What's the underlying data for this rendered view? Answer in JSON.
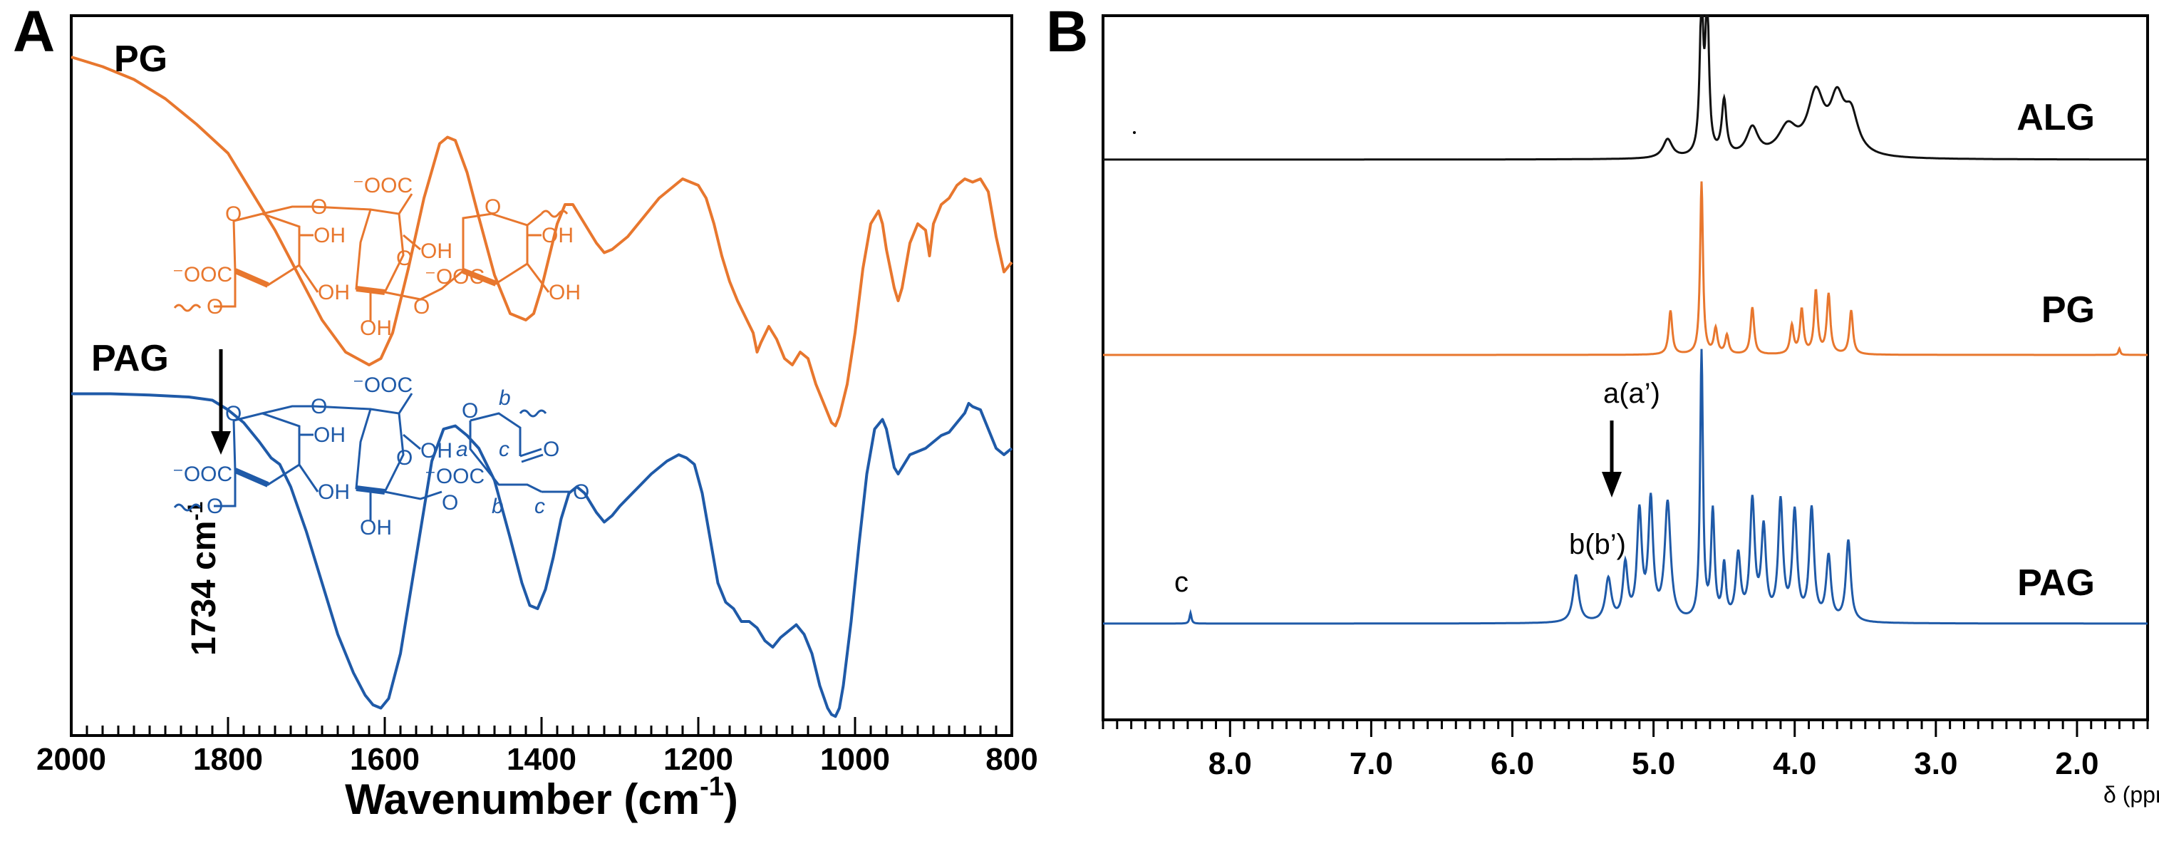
{
  "chart_data": [
    {
      "panel": "A",
      "type": "line",
      "title": "",
      "xlabel": "Wavenumber (cm",
      "xlabel_sup": "-1",
      "xlabel_close": ")",
      "xlim": [
        2000,
        800
      ],
      "x_ticks": [
        "2000",
        "1800",
        "1600",
        "1400",
        "1200",
        "1000",
        "800"
      ],
      "ylabel": "",
      "grid": false,
      "legend": "none",
      "series": [
        {
          "name": "PG",
          "color": "#E8772E",
          "x": [
            2000,
            1960,
            1920,
            1880,
            1840,
            1800,
            1770,
            1740,
            1710,
            1680,
            1650,
            1620,
            1605,
            1590,
            1570,
            1550,
            1530,
            1520,
            1510,
            1495,
            1480,
            1460,
            1440,
            1420,
            1410,
            1400,
            1390,
            1380,
            1370,
            1360,
            1350,
            1330,
            1320,
            1310,
            1290,
            1270,
            1250,
            1230,
            1220,
            1210,
            1200,
            1190,
            1180,
            1170,
            1160,
            1150,
            1140,
            1130,
            1125,
            1120,
            1110,
            1100,
            1090,
            1080,
            1070,
            1060,
            1050,
            1040,
            1030,
            1025,
            1020,
            1010,
            1000,
            990,
            980,
            970,
            965,
            960,
            950,
            945,
            940,
            930,
            920,
            910,
            905,
            900,
            890,
            880,
            870,
            860,
            850,
            840,
            830,
            820,
            810,
            800
          ],
          "y": [
            0.98,
            0.965,
            0.945,
            0.915,
            0.875,
            0.83,
            0.77,
            0.71,
            0.64,
            0.57,
            0.52,
            0.5,
            0.51,
            0.55,
            0.65,
            0.76,
            0.845,
            0.855,
            0.85,
            0.8,
            0.73,
            0.64,
            0.58,
            0.57,
            0.58,
            0.62,
            0.67,
            0.72,
            0.75,
            0.75,
            0.73,
            0.69,
            0.675,
            0.68,
            0.7,
            0.73,
            0.76,
            0.78,
            0.79,
            0.785,
            0.78,
            0.76,
            0.72,
            0.67,
            0.63,
            0.6,
            0.575,
            0.55,
            0.52,
            0.535,
            0.56,
            0.54,
            0.51,
            0.5,
            0.52,
            0.51,
            0.47,
            0.44,
            0.41,
            0.405,
            0.42,
            0.47,
            0.55,
            0.65,
            0.72,
            0.74,
            0.72,
            0.68,
            0.62,
            0.6,
            0.62,
            0.69,
            0.72,
            0.71,
            0.67,
            0.72,
            0.75,
            0.76,
            0.78,
            0.79,
            0.785,
            0.79,
            0.77,
            0.7,
            0.645,
            0.66
          ]
        },
        {
          "name": "PAG",
          "color": "#1F5AA8",
          "x": [
            2000,
            1950,
            1900,
            1850,
            1820,
            1800,
            1780,
            1760,
            1745,
            1734,
            1720,
            1700,
            1680,
            1660,
            1640,
            1625,
            1615,
            1605,
            1595,
            1580,
            1560,
            1540,
            1525,
            1510,
            1495,
            1480,
            1460,
            1440,
            1425,
            1415,
            1405,
            1395,
            1385,
            1375,
            1365,
            1355,
            1345,
            1330,
            1320,
            1310,
            1300,
            1280,
            1260,
            1240,
            1225,
            1215,
            1205,
            1195,
            1185,
            1175,
            1165,
            1155,
            1145,
            1135,
            1125,
            1115,
            1105,
            1095,
            1085,
            1075,
            1065,
            1055,
            1045,
            1035,
            1030,
            1025,
            1020,
            1015,
            1005,
            995,
            985,
            975,
            965,
            960,
            955,
            950,
            945,
            940,
            930,
            920,
            910,
            900,
            890,
            880,
            870,
            860,
            855,
            850,
            840,
            830,
            820,
            810,
            800
          ],
          "y": [
            0.455,
            0.455,
            0.453,
            0.45,
            0.445,
            0.43,
            0.41,
            0.38,
            0.355,
            0.345,
            0.31,
            0.24,
            0.16,
            0.08,
            0.02,
            -0.015,
            -0.03,
            -0.035,
            -0.02,
            0.05,
            0.2,
            0.35,
            0.4,
            0.405,
            0.39,
            0.37,
            0.32,
            0.23,
            0.16,
            0.125,
            0.12,
            0.15,
            0.2,
            0.26,
            0.3,
            0.31,
            0.3,
            0.27,
            0.255,
            0.265,
            0.28,
            0.305,
            0.33,
            0.35,
            0.36,
            0.355,
            0.345,
            0.3,
            0.23,
            0.16,
            0.13,
            0.12,
            0.1,
            0.1,
            0.09,
            0.07,
            0.06,
            0.075,
            0.085,
            0.095,
            0.08,
            0.05,
            0.0,
            -0.035,
            -0.045,
            -0.048,
            -0.035,
            0.0,
            0.1,
            0.22,
            0.33,
            0.4,
            0.415,
            0.4,
            0.37,
            0.34,
            0.33,
            0.34,
            0.36,
            0.365,
            0.37,
            0.38,
            0.39,
            0.395,
            0.41,
            0.425,
            0.44,
            0.435,
            0.43,
            0.4,
            0.37,
            0.36,
            0.37
          ]
        }
      ],
      "annotations": [
        {
          "text": "PG",
          "series": "PG"
        },
        {
          "text": "PAG",
          "series": "PAG"
        },
        {
          "text": "1734 cm",
          "sup": "-1",
          "x": 1734,
          "arrow": "down"
        }
      ]
    },
    {
      "panel": "B",
      "type": "line",
      "title": "",
      "xlabel": "δ (ppm)",
      "xlim": [
        8.9,
        1.5
      ],
      "x_ticks": [
        "8.0",
        "7.0",
        "6.0",
        "5.0",
        "4.0",
        "3.0",
        "2.0"
      ],
      "x_tick_values": [
        8.0,
        7.0,
        6.0,
        5.0,
        4.0,
        3.0,
        2.0
      ],
      "ylabel": "",
      "grid": false,
      "legend": "none",
      "series": [
        {
          "name": "ALG",
          "color": "#111111",
          "baseline_y": 0.0,
          "peaks": [
            {
              "ppm": 4.9,
              "h": 0.12,
              "w": 0.04
            },
            {
              "ppm": 4.66,
              "h": 0.95,
              "w": 0.015
            },
            {
              "ppm": 4.62,
              "h": 0.95,
              "w": 0.015
            },
            {
              "ppm": 4.5,
              "h": 0.35,
              "w": 0.02
            },
            {
              "ppm": 4.3,
              "h": 0.18,
              "w": 0.05
            },
            {
              "ppm": 4.05,
              "h": 0.18,
              "w": 0.08
            },
            {
              "ppm": 3.85,
              "h": 0.38,
              "w": 0.07
            },
            {
              "ppm": 3.7,
              "h": 0.32,
              "w": 0.06
            },
            {
              "ppm": 3.6,
              "h": 0.24,
              "w": 0.06
            }
          ]
        },
        {
          "name": "PG",
          "color": "#E8772E",
          "baseline_y": 0.0,
          "peaks": [
            {
              "ppm": 4.88,
              "h": 0.28,
              "w": 0.015
            },
            {
              "ppm": 4.66,
              "h": 1.1,
              "w": 0.012
            },
            {
              "ppm": 4.56,
              "h": 0.16,
              "w": 0.015
            },
            {
              "ppm": 4.48,
              "h": 0.12,
              "w": 0.015
            },
            {
              "ppm": 4.3,
              "h": 0.3,
              "w": 0.015
            },
            {
              "ppm": 4.02,
              "h": 0.18,
              "w": 0.015
            },
            {
              "ppm": 3.95,
              "h": 0.28,
              "w": 0.015
            },
            {
              "ppm": 3.85,
              "h": 0.4,
              "w": 0.015
            },
            {
              "ppm": 3.76,
              "h": 0.38,
              "w": 0.015
            },
            {
              "ppm": 3.6,
              "h": 0.28,
              "w": 0.015
            },
            {
              "ppm": 1.7,
              "h": 0.04,
              "w": 0.008
            }
          ]
        },
        {
          "name": "PAG",
          "color": "#1F5AA8",
          "baseline_y": 0.0,
          "peaks": [
            {
              "ppm": 8.28,
              "h": 0.05,
              "w": 0.008
            },
            {
              "ppm": 5.55,
              "h": 0.22,
              "w": 0.025
            },
            {
              "ppm": 5.32,
              "h": 0.2,
              "w": 0.025
            },
            {
              "ppm": 5.2,
              "h": 0.26,
              "w": 0.02
            },
            {
              "ppm": 5.1,
              "h": 0.5,
              "w": 0.02
            },
            {
              "ppm": 5.02,
              "h": 0.55,
              "w": 0.02
            },
            {
              "ppm": 4.9,
              "h": 0.55,
              "w": 0.025
            },
            {
              "ppm": 4.66,
              "h": 1.25,
              "w": 0.012
            },
            {
              "ppm": 4.58,
              "h": 0.5,
              "w": 0.015
            },
            {
              "ppm": 4.5,
              "h": 0.25,
              "w": 0.015
            },
            {
              "ppm": 4.4,
              "h": 0.3,
              "w": 0.02
            },
            {
              "ppm": 4.3,
              "h": 0.55,
              "w": 0.02
            },
            {
              "ppm": 4.22,
              "h": 0.42,
              "w": 0.02
            },
            {
              "ppm": 4.1,
              "h": 0.55,
              "w": 0.02
            },
            {
              "ppm": 4.0,
              "h": 0.5,
              "w": 0.02
            },
            {
              "ppm": 3.88,
              "h": 0.52,
              "w": 0.02
            },
            {
              "ppm": 3.76,
              "h": 0.3,
              "w": 0.02
            },
            {
              "ppm": 3.62,
              "h": 0.38,
              "w": 0.02
            }
          ]
        }
      ],
      "annotations": [
        {
          "text": "c",
          "ppm": 8.28
        },
        {
          "text": "b(b’)",
          "ppm": 5.45
        },
        {
          "text": "a(a’)",
          "ppm": 5.06,
          "arrow": "down"
        }
      ],
      "structure_labels": {
        "carboxylate": "⁻OOC",
        "hydroxyl": "OH",
        "oxygen": "O",
        "a": "a",
        "b": "b",
        "c": "c"
      }
    }
  ],
  "colors": {
    "orange": "#E8772E",
    "blue": "#1F5AA8",
    "black": "#111111"
  }
}
